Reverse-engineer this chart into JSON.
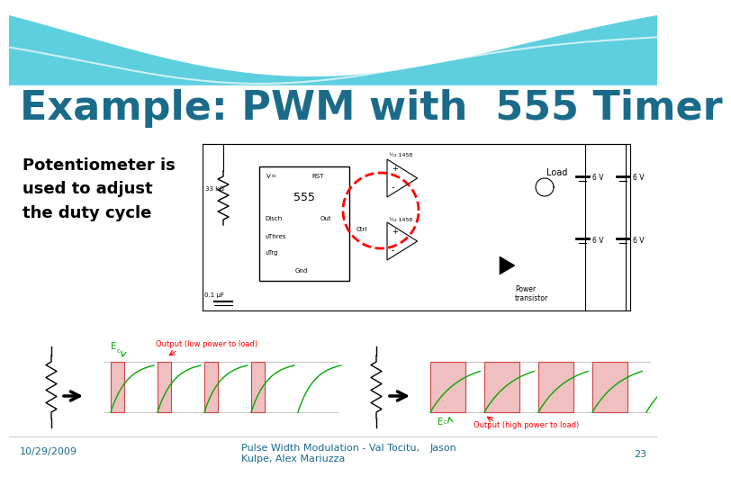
{
  "title": "Example: PWM with  555 Timer",
  "title_color": "#1a6b8a",
  "title_fontsize": 32,
  "bg_color": "#ffffff",
  "teal_color": "#5ecfdf",
  "subtitle_text": "Potentiometer is\nused to adjust\nthe duty cycle",
  "subtitle_color": "#000000",
  "subtitle_fontsize": 13,
  "footer_left": "10/29/2009",
  "footer_center_line1": "Pulse Width Modulation - Val Tocitu,",
  "footer_center_line2": "Kulpe, Alex Mariuzza",
  "footer_right_name": "Jason",
  "footer_page": "23",
  "footer_color": "#1a6b8a",
  "footer_fontsize": 8
}
